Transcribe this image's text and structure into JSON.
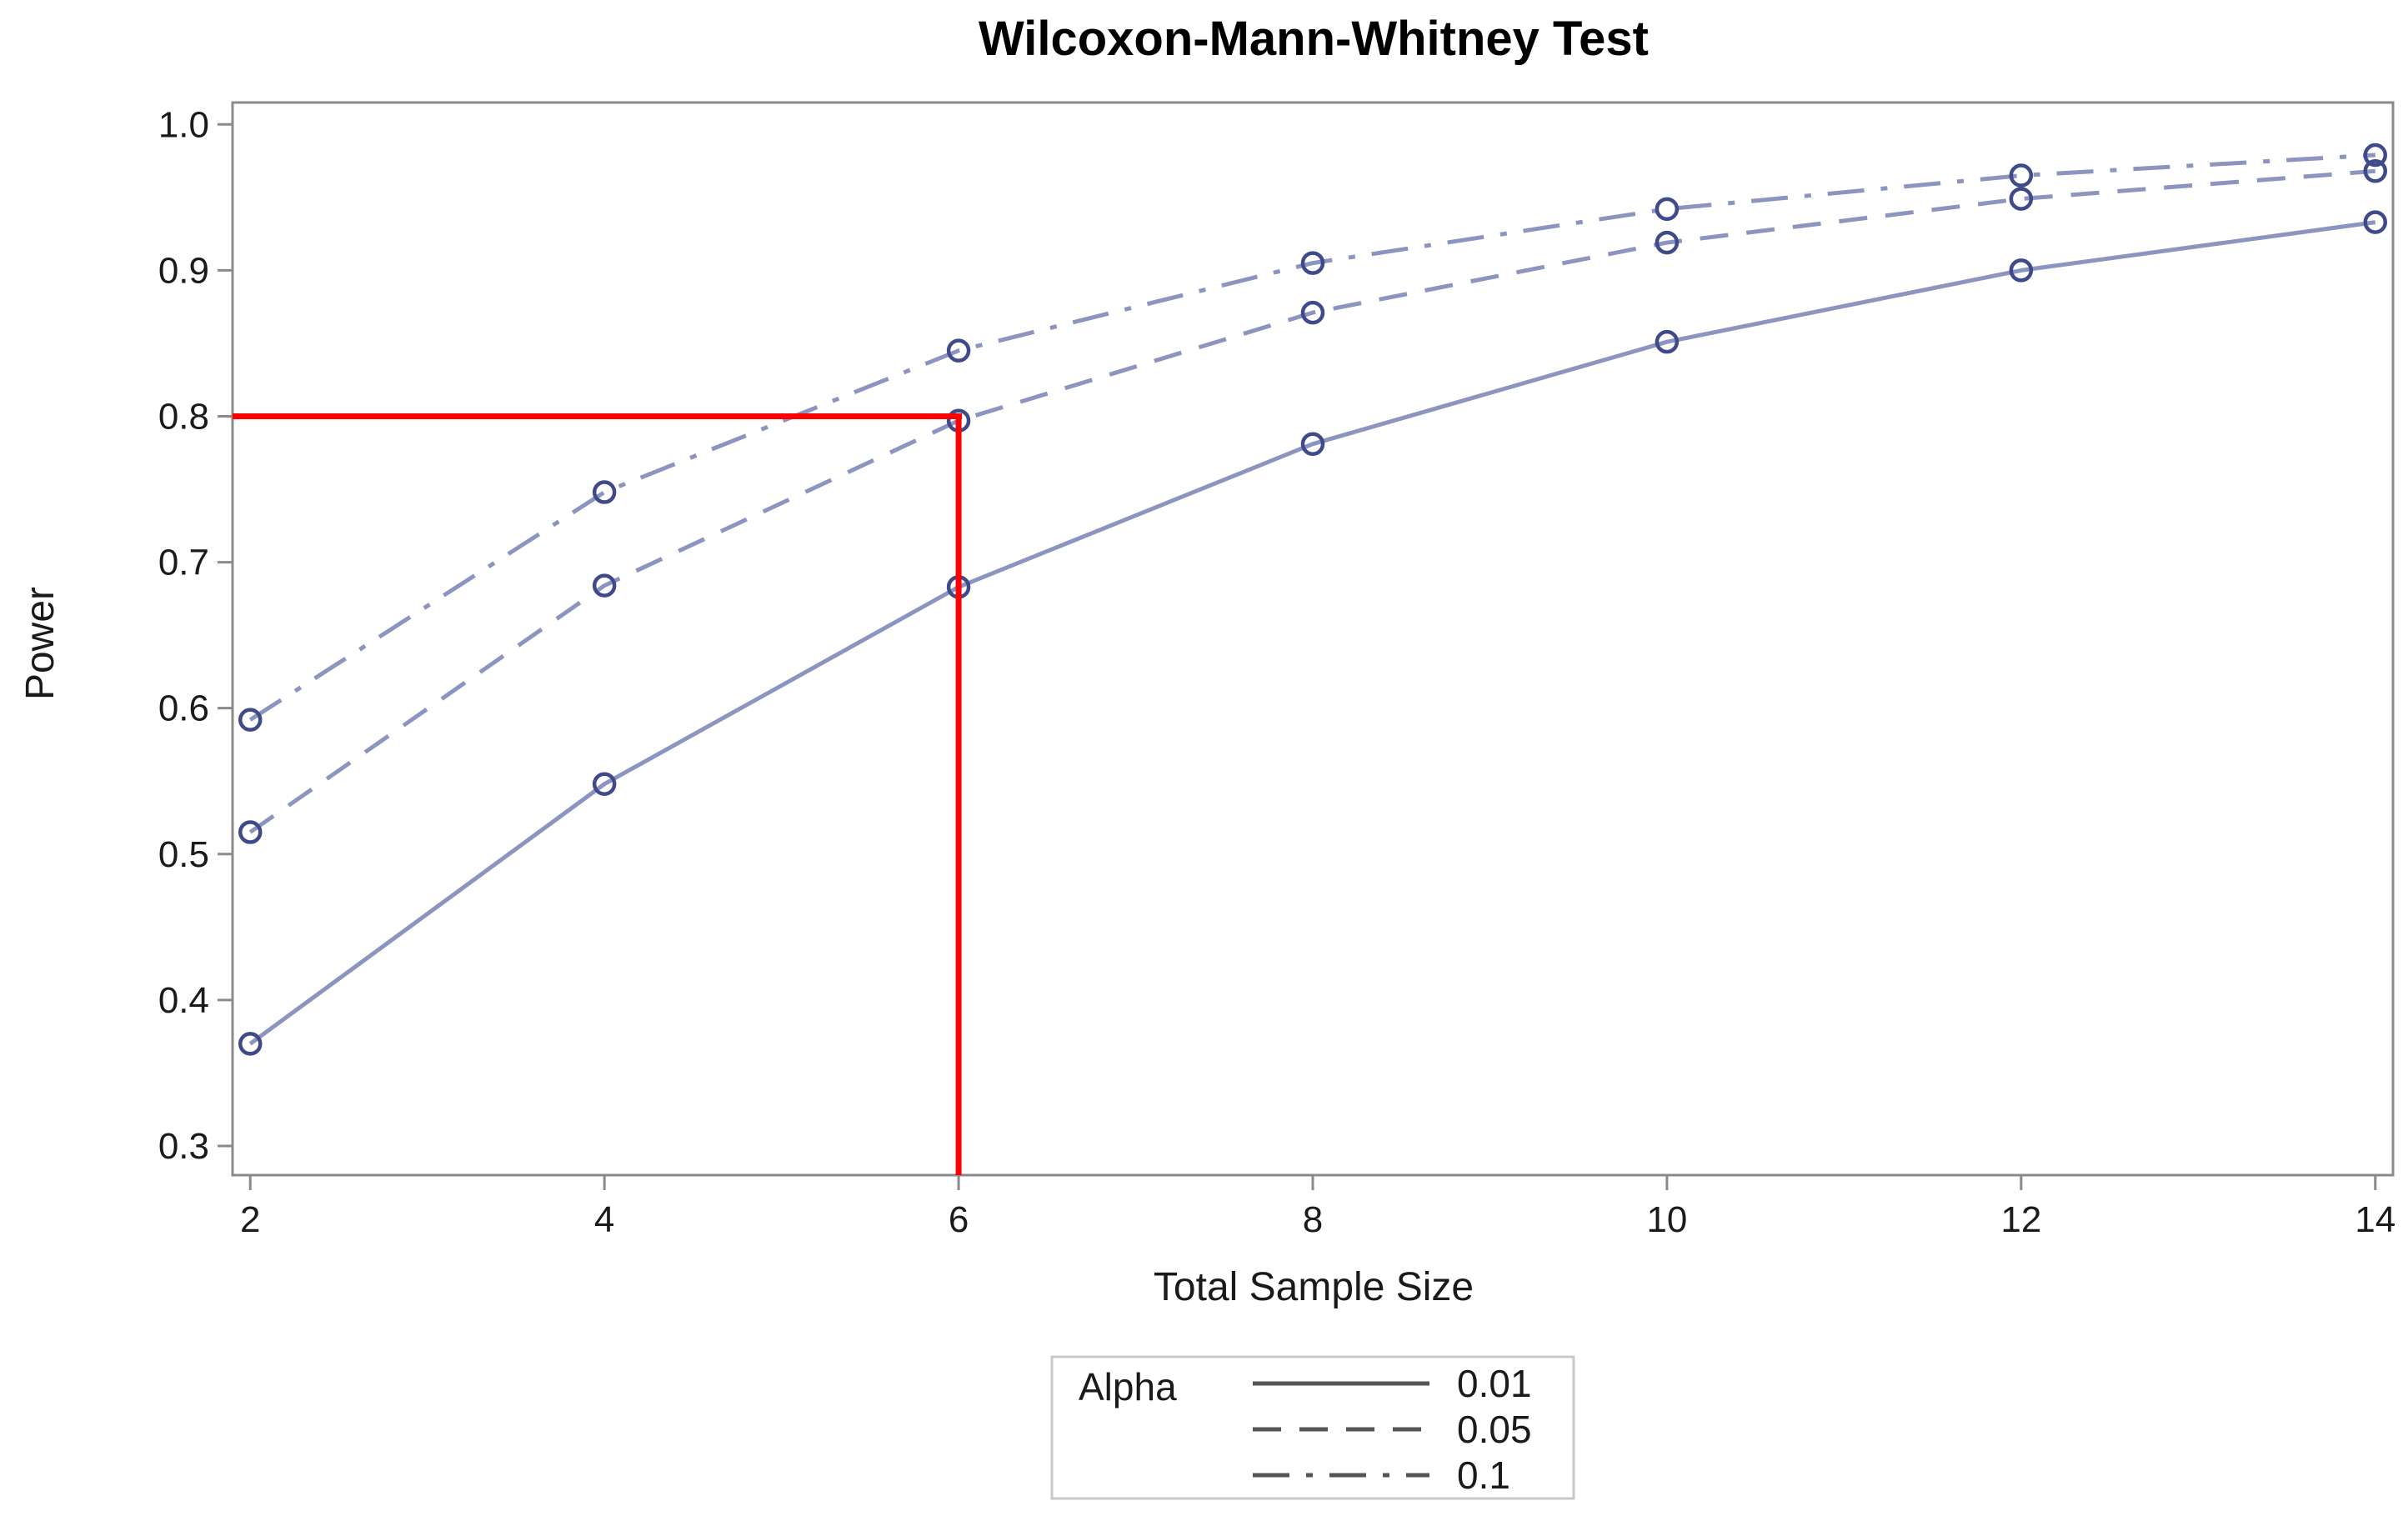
{
  "chart_data": {
    "type": "line",
    "title": "Wilcoxon-Mann-Whitney Test",
    "xlabel": "Total Sample Size",
    "ylabel": "Power",
    "x": [
      2,
      4,
      6,
      8,
      10,
      12,
      14
    ],
    "xlim": [
      1.9,
      14.1
    ],
    "ylim": [
      0.28,
      1.015
    ],
    "xticks": [
      2,
      4,
      6,
      8,
      10,
      12,
      14
    ],
    "yticks": [
      "0.3",
      "0.4",
      "0.5",
      "0.6",
      "0.7",
      "0.8",
      "0.9",
      "1.0"
    ],
    "grid": false,
    "series_color": "#8c94c0",
    "marker_color": "#3f4a8a",
    "marker": "circle",
    "series": [
      {
        "name": "0.01",
        "dash": "solid",
        "values": [
          0.37,
          0.548,
          0.683,
          0.781,
          0.851,
          0.9,
          0.933
        ]
      },
      {
        "name": "0.05",
        "dash": "dashed",
        "values": [
          0.515,
          0.684,
          0.797,
          0.871,
          0.919,
          0.949,
          0.968
        ]
      },
      {
        "name": "0.1",
        "dash": "dash-dot",
        "values": [
          0.592,
          0.748,
          0.845,
          0.905,
          0.942,
          0.965,
          0.979
        ]
      }
    ],
    "reference_lines": {
      "color": "#ff0000",
      "horizontal_y": 0.8,
      "horizontal_x_range": [
        1.9,
        6
      ],
      "vertical_x": 6,
      "vertical_y_range": [
        0.28,
        0.8
      ]
    },
    "legend": {
      "title": "Alpha",
      "placement": "bottom-center"
    }
  }
}
